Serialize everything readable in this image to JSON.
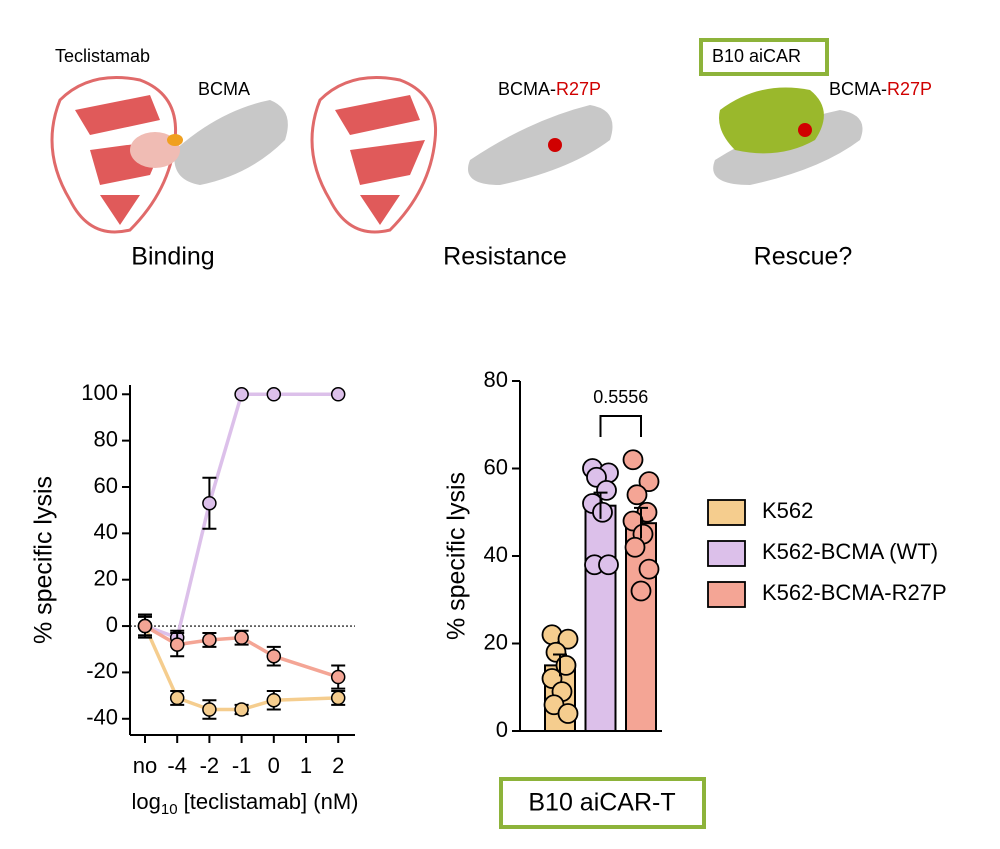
{
  "structure_panel": {
    "labels": [
      "Teclistamab",
      "BCMA",
      "BCMA-",
      "R27P",
      "B10 aiCAR",
      "BCMA-",
      "R27P"
    ],
    "captions": [
      "Binding",
      "Resistance",
      "Rescue?"
    ]
  },
  "chart_data": [
    {
      "type": "line",
      "categories": [
        "no",
        "-4",
        "-2",
        "-1",
        "0",
        "1",
        "2"
      ],
      "y_label": "% specific lysis",
      "x_label": {
        "base": "log",
        "subscript": "10",
        "rest": " [teclistamab] (nM)"
      },
      "ylim": [
        -47,
        104
      ],
      "yticks": [
        -40,
        -20,
        0,
        20,
        40,
        60,
        80,
        100
      ],
      "zero_line": true,
      "series": [
        {
          "color": "#f5cd8e",
          "values": [
            0,
            -31,
            -36,
            -36,
            -32,
            null,
            -31
          ],
          "errors": [
            4,
            3,
            4,
            2,
            4,
            null,
            3
          ]
        },
        {
          "color": "#dcc0ea",
          "values": [
            0,
            -5,
            53,
            100,
            100,
            null,
            100
          ],
          "errors": [
            4,
            3,
            11,
            0,
            0,
            null,
            0
          ]
        },
        {
          "color": "#f4a595",
          "values": [
            0,
            -8,
            -6,
            -5,
            -13,
            null,
            -22
          ],
          "errors": [
            5,
            5,
            3,
            3,
            4,
            null,
            5
          ]
        }
      ]
    },
    {
      "type": "bar",
      "y_label": "% specific lysis",
      "ylim": [
        0,
        80
      ],
      "yticks": [
        0,
        20,
        40,
        60,
        80
      ],
      "legend": "right",
      "annotation": "0.5556",
      "footer": "B10 aiCAR-T",
      "series": [
        {
          "name": "K562",
          "color": "#f5cd8e",
          "value": 15,
          "error": 2.5,
          "points": [
            22,
            21,
            18,
            15,
            12,
            9,
            6,
            4
          ]
        },
        {
          "name": "K562-BCMA (WT)",
          "color": "#dcc0ea",
          "value": 51.5,
          "error": 3,
          "points": [
            60,
            59,
            58,
            55,
            52,
            50,
            38,
            38
          ]
        },
        {
          "name": "K562-BCMA-R27P",
          "color": "#f4a595",
          "value": 47.5,
          "error": 3.5,
          "points": [
            62,
            57,
            54,
            50,
            48,
            45,
            42,
            37,
            32
          ]
        }
      ]
    }
  ]
}
